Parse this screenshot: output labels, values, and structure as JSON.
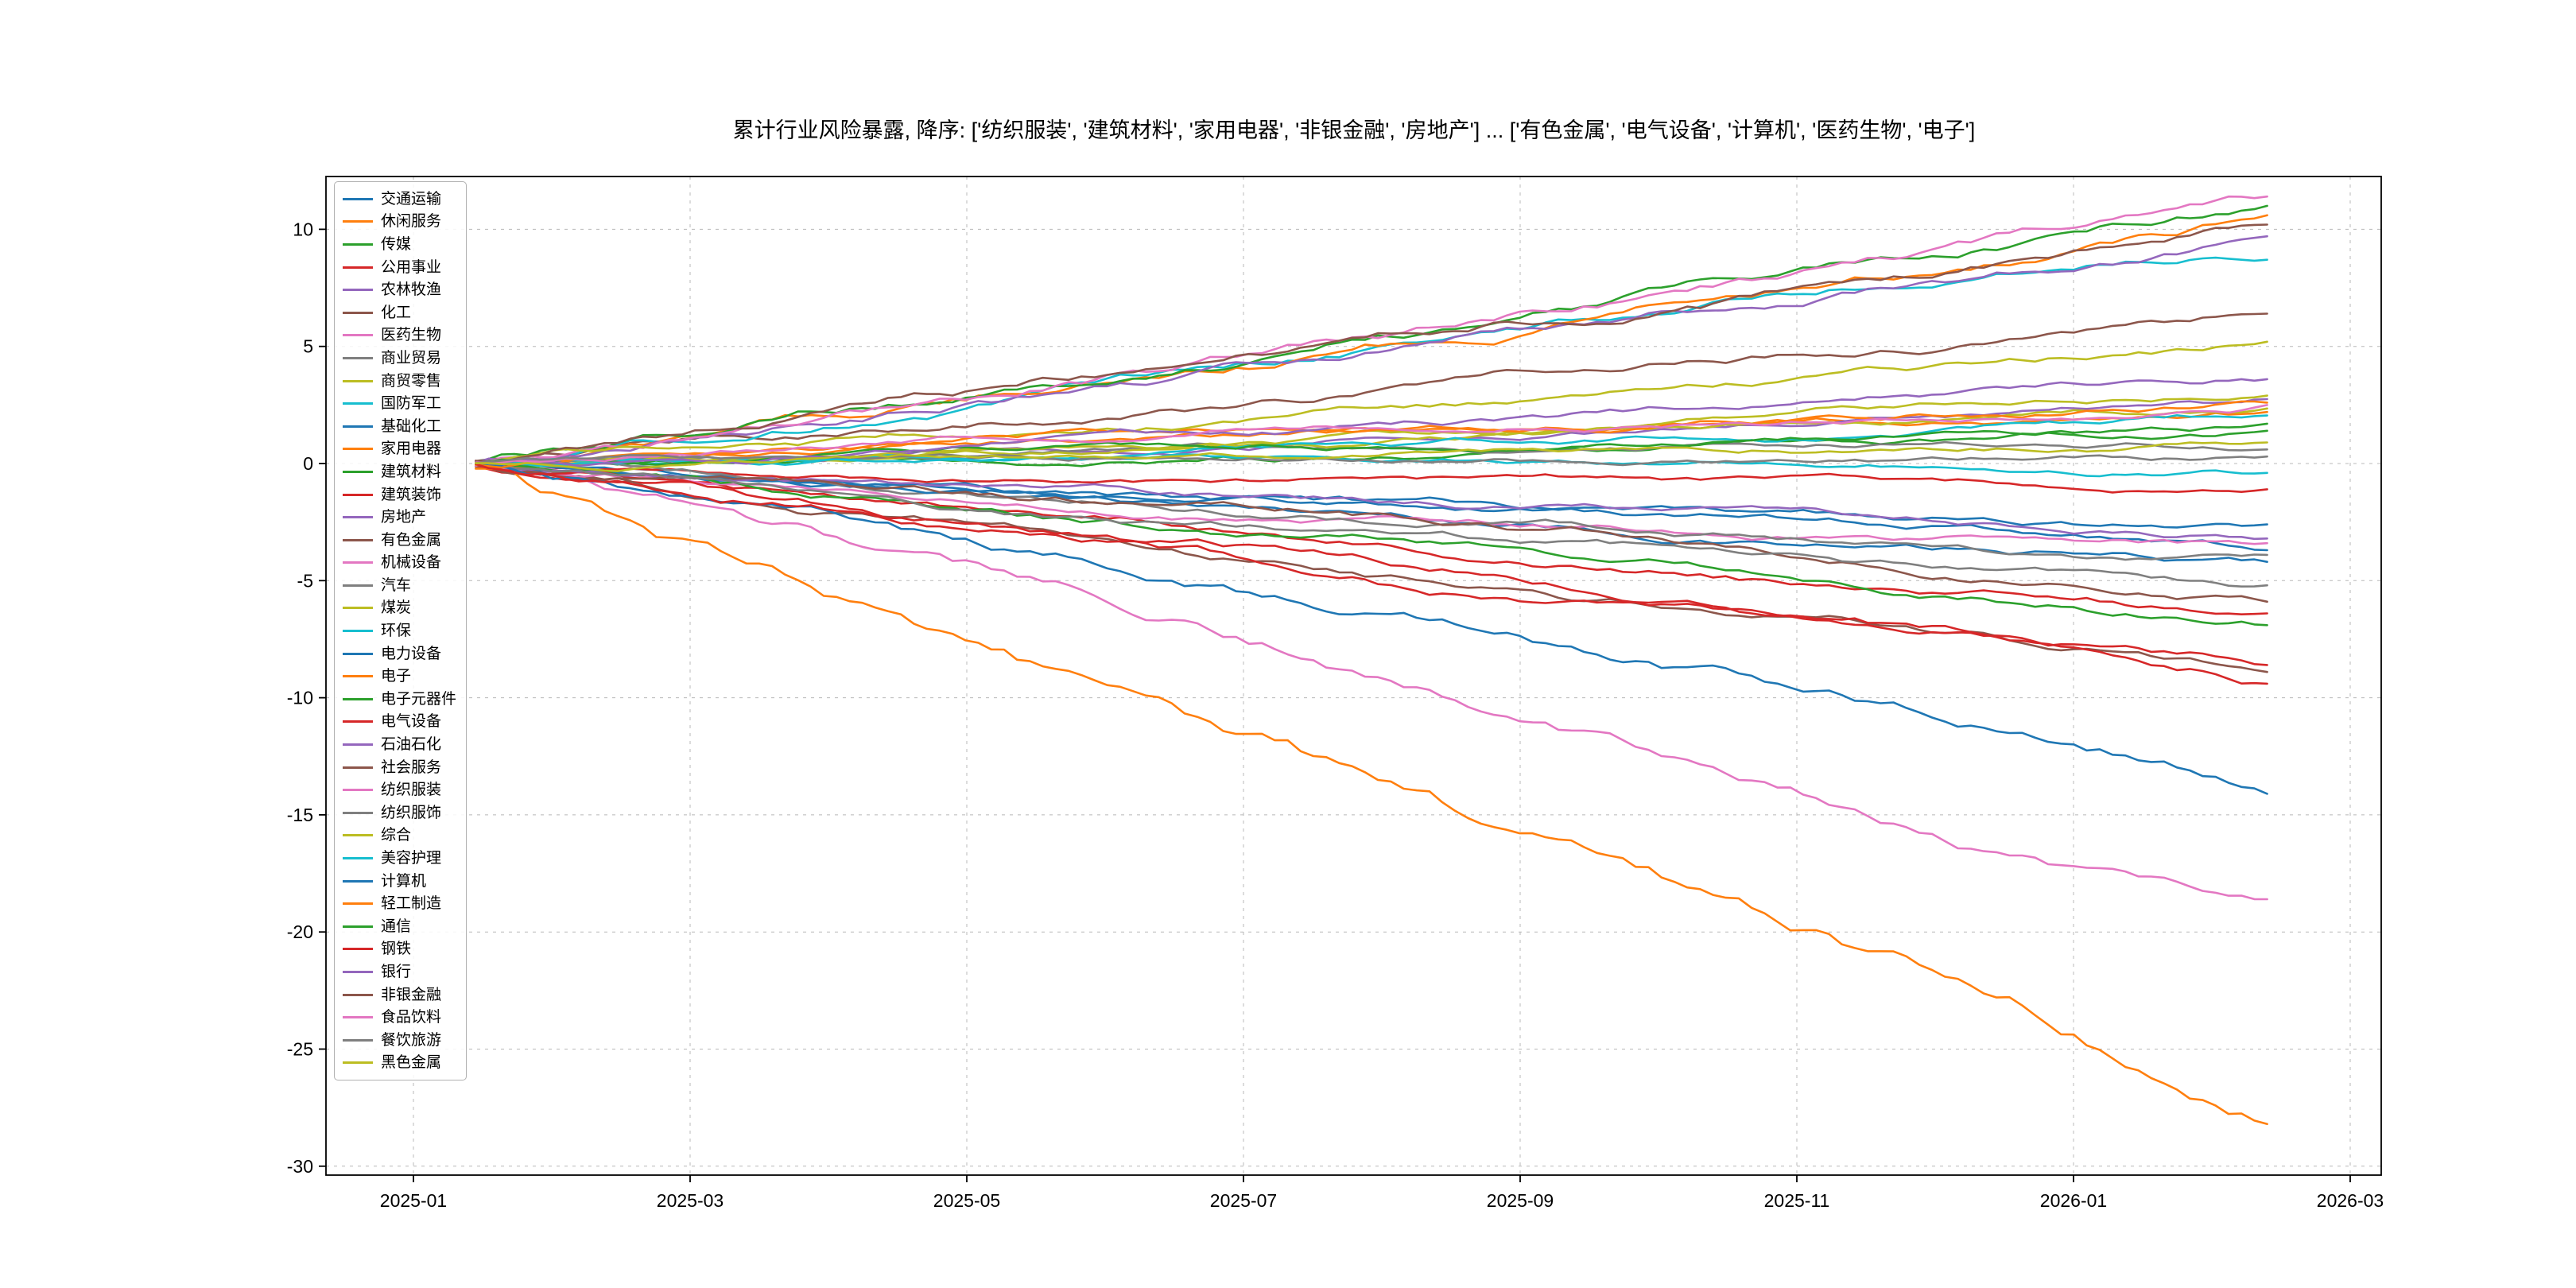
{
  "chart_data": {
    "type": "line",
    "title": "累计行业风险暴露, 降序: ['纺织服装', '建筑材料', '家用电器', '非银金融', '房地产'] ... ['有色金属', '电气设备', '计算机', '医药生物', '电子']",
    "xlabel": "",
    "ylabel": "",
    "x_tick_labels": [
      "2025-01",
      "2025-03",
      "2025-05",
      "2025-07",
      "2025-09",
      "2025-11",
      "2026-01",
      "2026-03"
    ],
    "y_ticks": [
      -30,
      -25,
      -20,
      -15,
      -10,
      -5,
      0,
      5,
      10
    ],
    "ylim": [
      -30.4,
      12.3
    ],
    "grid": "dashed",
    "legend_position": "upper-left",
    "x_start": "2025-01 (mid-month)",
    "x_end": "2026-02 (mid-month)",
    "series_note": "Cumulative exposure paths, all starting at 0 in mid Jan 2025 and trending roughly linearly to the end value in Feb 2026",
    "series": [
      {
        "name": "交通运输",
        "color": "#1f77b4",
        "start": 0,
        "end": -4.2
      },
      {
        "name": "休闲服务",
        "color": "#ff7f0e",
        "start": 0,
        "end": 2.2
      },
      {
        "name": "传媒",
        "color": "#2ca02c",
        "start": 0,
        "end": 1.7
      },
      {
        "name": "公用事业",
        "color": "#d62728",
        "start": 0,
        "end": -1.1
      },
      {
        "name": "农林牧渔",
        "color": "#9467bd",
        "start": 0,
        "end": 2.75
      },
      {
        "name": "化工",
        "color": "#8c564b",
        "start": 0,
        "end": 6.4
      },
      {
        "name": "医药生物",
        "color": "#e377c2",
        "start": 0,
        "end": -18.6
      },
      {
        "name": "商业贸易",
        "color": "#7f7f7f",
        "start": 0,
        "end": 0.6
      },
      {
        "name": "商贸零售",
        "color": "#bcbd22",
        "start": 0,
        "end": 2.35
      },
      {
        "name": "国防军工",
        "color": "#17becf",
        "start": 0,
        "end": 8.7
      },
      {
        "name": "基础化工",
        "color": "#1f77b4",
        "start": 0,
        "end": -3.7
      },
      {
        "name": "家用电器",
        "color": "#ff7f0e",
        "start": 0,
        "end": 10.6
      },
      {
        "name": "建筑材料",
        "color": "#2ca02c",
        "start": 0,
        "end": 11.0
      },
      {
        "name": "建筑装饰",
        "color": "#d62728",
        "start": 0,
        "end": -6.4
      },
      {
        "name": "房地产",
        "color": "#9467bd",
        "start": 0,
        "end": 9.7
      },
      {
        "name": "有色金属",
        "color": "#8c564b",
        "start": 0,
        "end": -8.9
      },
      {
        "name": "机械设备",
        "color": "#e377c2",
        "start": 0,
        "end": -3.4
      },
      {
        "name": "汽车",
        "color": "#7f7f7f",
        "start": 0,
        "end": -3.9
      },
      {
        "name": "煤炭",
        "color": "#bcbd22",
        "start": 0,
        "end": 2.9
      },
      {
        "name": "环保",
        "color": "#17becf",
        "start": 0,
        "end": 2.05
      },
      {
        "name": "电力设备",
        "color": "#1f77b4",
        "start": 0,
        "end": -2.6
      },
      {
        "name": "电子",
        "color": "#ff7f0e",
        "start": 0,
        "end": -28.2
      },
      {
        "name": "电子元器件",
        "color": "#2ca02c",
        "start": 0,
        "end": -6.9
      },
      {
        "name": "电气设备",
        "color": "#d62728",
        "start": 0,
        "end": -9.4
      },
      {
        "name": "石油石化",
        "color": "#9467bd",
        "start": 0,
        "end": -3.2
      },
      {
        "name": "社会服务",
        "color": "#8c564b",
        "start": 0,
        "end": -5.9
      },
      {
        "name": "纺织服装",
        "color": "#e377c2",
        "start": 0,
        "end": 11.4
      },
      {
        "name": "纺织服饰",
        "color": "#7f7f7f",
        "start": 0,
        "end": -5.2
      },
      {
        "name": "综合",
        "color": "#bcbd22",
        "start": 0,
        "end": 5.2
      },
      {
        "name": "美容护理",
        "color": "#17becf",
        "start": 0,
        "end": -0.4
      },
      {
        "name": "计算机",
        "color": "#1f77b4",
        "start": 0,
        "end": -14.1
      },
      {
        "name": "轻工制造",
        "color": "#ff7f0e",
        "start": 0,
        "end": 2.6
      },
      {
        "name": "通信",
        "color": "#2ca02c",
        "start": 0,
        "end": 1.4
      },
      {
        "name": "钢铁",
        "color": "#d62728",
        "start": 0,
        "end": -8.6
      },
      {
        "name": "银行",
        "color": "#9467bd",
        "start": 0,
        "end": 3.6
      },
      {
        "name": "非银金融",
        "color": "#8c564b",
        "start": 0,
        "end": 10.2
      },
      {
        "name": "食品饮料",
        "color": "#e377c2",
        "start": 0,
        "end": 2.5
      },
      {
        "name": "餐饮旅游",
        "color": "#7f7f7f",
        "start": 0,
        "end": 0.3
      },
      {
        "name": "黑色金属",
        "color": "#bcbd22",
        "start": 0,
        "end": 0.9
      }
    ]
  }
}
